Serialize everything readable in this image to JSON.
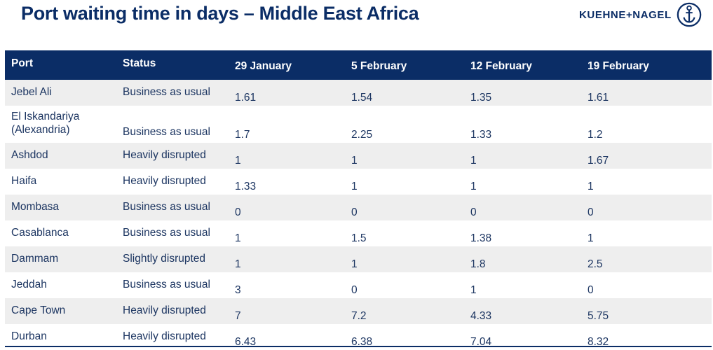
{
  "title": "Port waiting time in days – Middle East Africa",
  "logo": {
    "text": "KUEHNE+NAGEL",
    "icon": "anchor-icon"
  },
  "colors": {
    "header_bg": "#0b2d66",
    "row_shade": "#eeeeee",
    "text": "#1c3561"
  },
  "table": {
    "headers": [
      "Port",
      "Status",
      "29 January",
      "5 February",
      "12 February",
      "19 February"
    ],
    "rows": [
      {
        "port": "Jebel Ali",
        "status": "Business as usual",
        "values": [
          "1.61",
          "1.54",
          "1.35",
          "1.61"
        ]
      },
      {
        "port": "El Iskandariya (Alexandria)",
        "status": "Business as usual",
        "values": [
          "1.7",
          "2.25",
          "1.33",
          "1.2"
        ]
      },
      {
        "port": "Ashdod",
        "status": "Heavily disrupted",
        "values": [
          "1",
          "1",
          "1",
          "1.67"
        ]
      },
      {
        "port": "Haifa",
        "status": "Heavily disrupted",
        "values": [
          "1.33",
          "1",
          "1",
          "1"
        ]
      },
      {
        "port": "Mombasa",
        "status": "Business as usual",
        "values": [
          "0",
          "0",
          "0",
          "0"
        ]
      },
      {
        "port": "Casablanca",
        "status": "Business as usual",
        "values": [
          "1",
          "1.5",
          "1.38",
          "1"
        ]
      },
      {
        "port": "Dammam",
        "status": "Slightly disrupted",
        "values": [
          "1",
          "1",
          "1.8",
          "2.5"
        ]
      },
      {
        "port": "Jeddah",
        "status": "Business as usual",
        "values": [
          "3",
          "0",
          "1",
          "0"
        ]
      },
      {
        "port": "Cape Town",
        "status": "Heavily disrupted",
        "values": [
          "7",
          "7.2",
          "4.33",
          "5.75"
        ]
      },
      {
        "port": "Durban",
        "status": "Heavily disrupted",
        "values": [
          "6.43",
          "6.38",
          "7.04",
          "8.32"
        ]
      }
    ]
  }
}
